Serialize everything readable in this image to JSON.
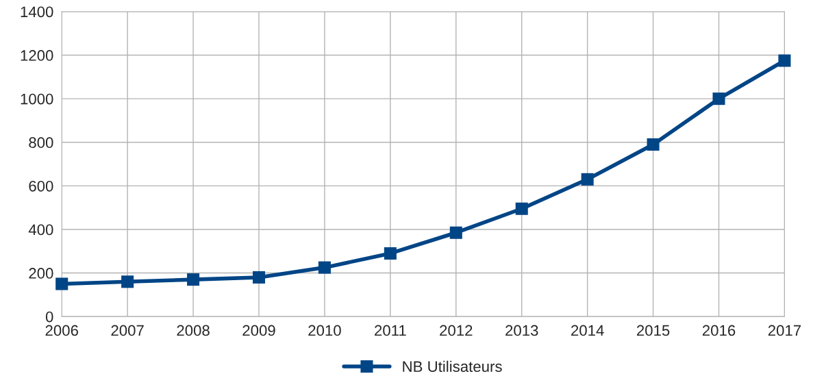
{
  "chart_data": {
    "type": "line",
    "x": [
      2006,
      2007,
      2008,
      2009,
      2010,
      2011,
      2012,
      2013,
      2014,
      2015,
      2016,
      2017
    ],
    "series": [
      {
        "name": "NB Utilisateurs",
        "color": "#004586",
        "values": [
          150,
          160,
          170,
          180,
          225,
          290,
          385,
          495,
          630,
          790,
          1000,
          1175
        ]
      }
    ],
    "xlim": [
      2006,
      2017
    ],
    "xticks": [
      2006,
      2007,
      2008,
      2009,
      2010,
      2011,
      2012,
      2013,
      2014,
      2015,
      2016,
      2017
    ],
    "ylim": [
      0,
      1400
    ],
    "yticks": [
      0,
      200,
      400,
      600,
      800,
      1000,
      1200,
      1400
    ],
    "grid": true,
    "legend": "bottom",
    "marker": "square",
    "line_style": "solid"
  }
}
